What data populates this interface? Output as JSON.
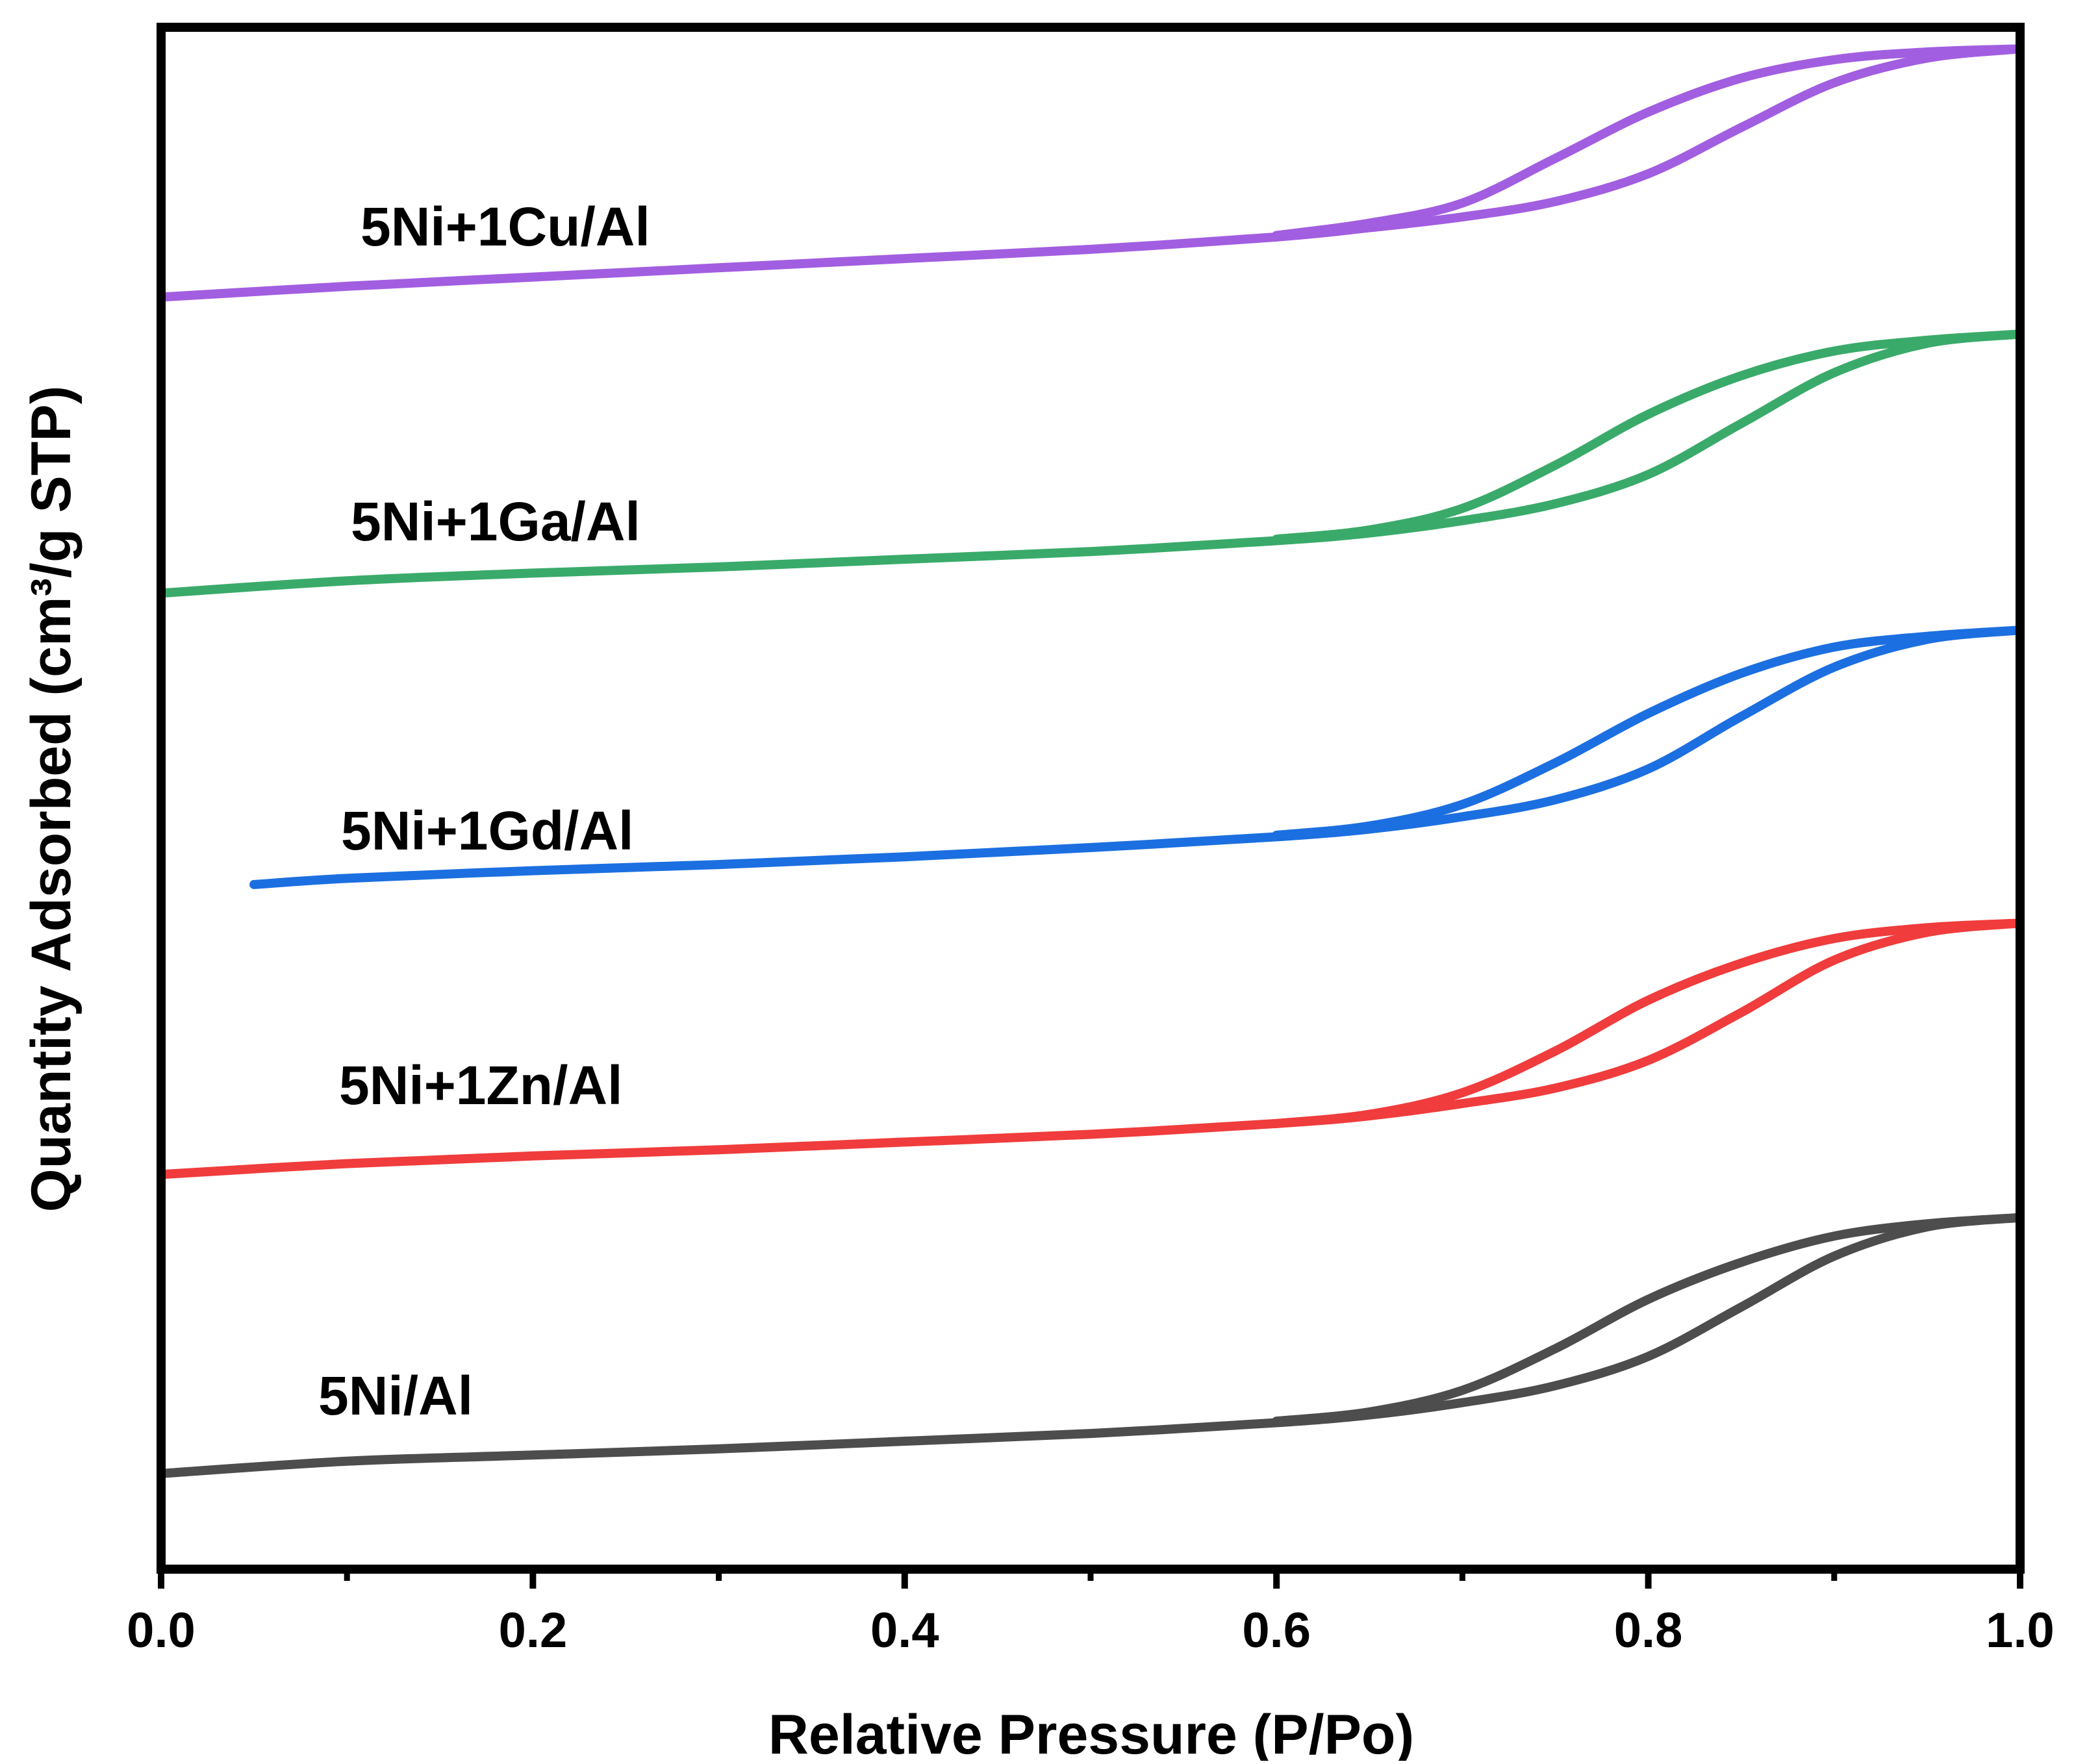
{
  "chart_data": {
    "type": "line",
    "title": "",
    "xlabel": "Relative Pressure (P/Po)",
    "ylabel": "Quantity Adsorbed (cm³/g STP)",
    "xlim": [
      0.0,
      1.0
    ],
    "ylim": [
      0,
      100
    ],
    "x_ticks": [
      "0.0",
      "0.2",
      "0.4",
      "0.6",
      "0.8",
      "1.0"
    ],
    "x_minor_ticks": [
      0.1,
      0.3,
      0.5,
      0.7,
      0.9
    ],
    "y_ticks_shown": false,
    "grid": false,
    "series": [
      {
        "name": "5Ni+1Cu/Al",
        "color": "#a25ee0",
        "adsorption": [
          [
            0.0,
            82.5
          ],
          [
            0.1,
            83.2
          ],
          [
            0.2,
            83.8
          ],
          [
            0.3,
            84.4
          ],
          [
            0.4,
            85.0
          ],
          [
            0.5,
            85.6
          ],
          [
            0.6,
            86.4
          ],
          [
            0.65,
            87.0
          ],
          [
            0.7,
            87.7
          ],
          [
            0.75,
            88.7
          ],
          [
            0.8,
            90.5
          ],
          [
            0.85,
            93.5
          ],
          [
            0.9,
            96.4
          ],
          [
            0.95,
            98.0
          ],
          [
            1.0,
            98.6
          ]
        ],
        "desorption": [
          [
            1.0,
            98.6
          ],
          [
            0.95,
            98.4
          ],
          [
            0.9,
            97.9
          ],
          [
            0.85,
            96.7
          ],
          [
            0.8,
            94.5
          ],
          [
            0.75,
            91.5
          ],
          [
            0.7,
            88.6
          ],
          [
            0.65,
            87.3
          ],
          [
            0.6,
            86.5
          ]
        ]
      },
      {
        "name": "5Ni+1Ga/Al",
        "color": "#3aaa6a",
        "adsorption": [
          [
            0.0,
            63.3
          ],
          [
            0.1,
            64.1
          ],
          [
            0.2,
            64.6
          ],
          [
            0.3,
            65.0
          ],
          [
            0.4,
            65.5
          ],
          [
            0.5,
            66.0
          ],
          [
            0.6,
            66.7
          ],
          [
            0.65,
            67.2
          ],
          [
            0.7,
            68.0
          ],
          [
            0.75,
            69.1
          ],
          [
            0.8,
            71.0
          ],
          [
            0.85,
            74.3
          ],
          [
            0.9,
            77.6
          ],
          [
            0.95,
            79.5
          ],
          [
            1.0,
            80.1
          ]
        ],
        "desorption": [
          [
            1.0,
            80.1
          ],
          [
            0.95,
            79.7
          ],
          [
            0.9,
            79.0
          ],
          [
            0.85,
            77.4
          ],
          [
            0.8,
            74.9
          ],
          [
            0.75,
            71.6
          ],
          [
            0.7,
            68.8
          ],
          [
            0.65,
            67.4
          ],
          [
            0.6,
            66.8
          ]
        ]
      },
      {
        "name": "5Ni+1Gd/Al",
        "color": "#1c6fe0",
        "adsorption": [
          [
            0.05,
            44.4
          ],
          [
            0.1,
            44.8
          ],
          [
            0.2,
            45.3
          ],
          [
            0.3,
            45.7
          ],
          [
            0.4,
            46.2
          ],
          [
            0.5,
            46.8
          ],
          [
            0.6,
            47.5
          ],
          [
            0.65,
            48.0
          ],
          [
            0.7,
            48.8
          ],
          [
            0.75,
            49.9
          ],
          [
            0.8,
            51.9
          ],
          [
            0.85,
            55.3
          ],
          [
            0.9,
            58.5
          ],
          [
            0.95,
            60.3
          ],
          [
            1.0,
            60.9
          ]
        ],
        "desorption": [
          [
            1.0,
            60.9
          ],
          [
            0.95,
            60.5
          ],
          [
            0.9,
            59.8
          ],
          [
            0.85,
            58.1
          ],
          [
            0.8,
            55.5
          ],
          [
            0.75,
            52.3
          ],
          [
            0.7,
            49.6
          ],
          [
            0.65,
            48.2
          ],
          [
            0.6,
            47.6
          ]
        ]
      },
      {
        "name": "5Ni+1Zn/Al",
        "color": "#f03c3c",
        "adsorption": [
          [
            0.0,
            25.6
          ],
          [
            0.1,
            26.3
          ],
          [
            0.2,
            26.8
          ],
          [
            0.3,
            27.2
          ],
          [
            0.4,
            27.7
          ],
          [
            0.5,
            28.2
          ],
          [
            0.6,
            28.9
          ],
          [
            0.65,
            29.4
          ],
          [
            0.7,
            30.2
          ],
          [
            0.75,
            31.2
          ],
          [
            0.8,
            33.0
          ],
          [
            0.85,
            36.1
          ],
          [
            0.9,
            39.5
          ],
          [
            0.95,
            41.3
          ],
          [
            1.0,
            41.9
          ]
        ],
        "desorption": [
          [
            1.0,
            41.9
          ],
          [
            0.95,
            41.6
          ],
          [
            0.9,
            40.9
          ],
          [
            0.85,
            39.3
          ],
          [
            0.8,
            36.9
          ],
          [
            0.75,
            33.6
          ],
          [
            0.7,
            30.9
          ],
          [
            0.65,
            29.5
          ],
          [
            0.6,
            28.9
          ]
        ]
      },
      {
        "name": "5Ni/Al",
        "color": "#4d4d4d",
        "adsorption": [
          [
            0.0,
            6.2
          ],
          [
            0.1,
            7.0
          ],
          [
            0.2,
            7.4
          ],
          [
            0.3,
            7.8
          ],
          [
            0.4,
            8.3
          ],
          [
            0.5,
            8.8
          ],
          [
            0.6,
            9.5
          ],
          [
            0.65,
            10.0
          ],
          [
            0.7,
            10.8
          ],
          [
            0.75,
            11.9
          ],
          [
            0.8,
            13.8
          ],
          [
            0.85,
            17.0
          ],
          [
            0.9,
            20.3
          ],
          [
            0.95,
            22.2
          ],
          [
            1.0,
            22.8
          ]
        ],
        "desorption": [
          [
            1.0,
            22.8
          ],
          [
            0.95,
            22.4
          ],
          [
            0.9,
            21.6
          ],
          [
            0.85,
            19.9
          ],
          [
            0.8,
            17.5
          ],
          [
            0.75,
            14.3
          ],
          [
            0.7,
            11.6
          ],
          [
            0.65,
            10.2
          ],
          [
            0.6,
            9.6
          ]
        ]
      }
    ],
    "annotations": [
      "5Ni+1Cu/Al",
      "5Ni+1Ga/Al",
      "5Ni+1Gd/Al",
      "5Ni+1Zn/Al",
      "5Ni/Al"
    ],
    "legend": "none (series labelled inline on the left, above each curve)"
  }
}
